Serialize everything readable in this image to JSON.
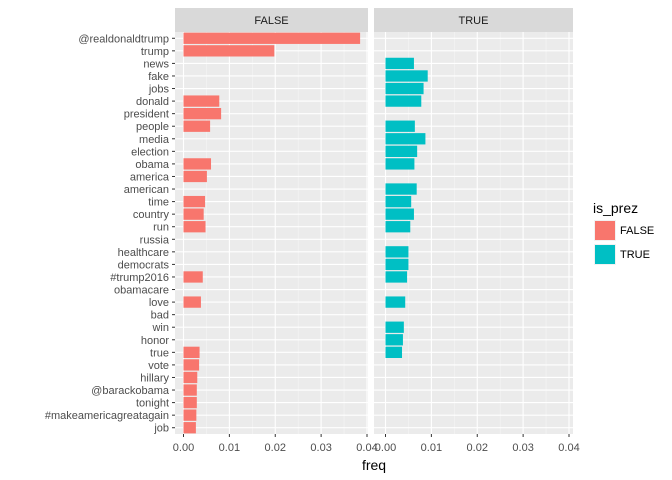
{
  "chart_data": {
    "type": "bar",
    "orientation": "horizontal",
    "facet_by": "is_prez",
    "xlabel": "freq",
    "ylabel": "",
    "xlim": [
      0,
      0.04
    ],
    "x_ticks": [
      "0.00",
      "0.01",
      "0.02",
      "0.03",
      "0.04"
    ],
    "grid": true,
    "legend": {
      "title": "is_prez",
      "position": "right",
      "entries": [
        {
          "label": "FALSE",
          "color": "#F8766D"
        },
        {
          "label": "TRUE",
          "color": "#00BFC4"
        }
      ]
    },
    "categories": [
      "@realdonaldtrump",
      "trump",
      "news",
      "fake",
      "jobs",
      "donald",
      "president",
      "people",
      "media",
      "election",
      "obama",
      "america",
      "american",
      "time",
      "country",
      "run",
      "russia",
      "healthcare",
      "democrats",
      "#trump2016",
      "obamacare",
      "love",
      "bad",
      "win",
      "honor",
      "true",
      "vote",
      "hillary",
      "@barackobama",
      "tonight",
      "#makeamericagreatagain",
      "job"
    ],
    "series": [
      {
        "name": "FALSE",
        "panel": "FALSE",
        "color": "#F8766D",
        "values": [
          0.0385,
          0.0198,
          0,
          0,
          0,
          0.0078,
          0.0082,
          0.0058,
          0,
          0,
          0.006,
          0.0051,
          0,
          0.0047,
          0.0044,
          0.0048,
          0,
          0,
          0,
          0.0042,
          0,
          0.0038,
          0,
          0,
          0,
          0.0035,
          0.0034,
          0.003,
          0.0029,
          0.0029,
          0.0028,
          0.0027
        ]
      },
      {
        "name": "TRUE",
        "panel": "TRUE",
        "color": "#00BFC4",
        "values": [
          0,
          0,
          0.0062,
          0.0092,
          0.0083,
          0.0078,
          0,
          0.0064,
          0.0087,
          0.0069,
          0.0063,
          0,
          0.0068,
          0.0056,
          0.0062,
          0.0054,
          0,
          0.005,
          0.005,
          0.0047,
          0,
          0.0043,
          0,
          0.004,
          0.0038,
          0.0036,
          0,
          0,
          0,
          0,
          0,
          0
        ]
      }
    ]
  }
}
